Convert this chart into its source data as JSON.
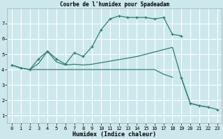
{
  "title": "Courbe de l'humidex pour Spadeadam",
  "xlabel": "Humidex (Indice chaleur)",
  "background_color": "#cce8ec",
  "line_color": "#2e7d6e",
  "grid_color": "#ffffff",
  "xlim": [
    -0.5,
    23.5
  ],
  "ylim": [
    0.5,
    8.0
  ],
  "xticks": [
    0,
    1,
    2,
    3,
    4,
    5,
    6,
    7,
    8,
    9,
    10,
    11,
    12,
    13,
    14,
    15,
    16,
    17,
    18,
    19,
    20,
    21,
    22,
    23
  ],
  "yticks": [
    1,
    2,
    3,
    4,
    5,
    6,
    7
  ],
  "series1_x": [
    0,
    1,
    2,
    3,
    4,
    5,
    6,
    7,
    8,
    9,
    10,
    11,
    12,
    13,
    14,
    15,
    16,
    17,
    18,
    19
  ],
  "series1_y": [
    4.3,
    4.1,
    4.0,
    4.7,
    5.2,
    4.7,
    4.35,
    5.1,
    4.85,
    5.5,
    6.6,
    7.3,
    7.5,
    7.4,
    7.4,
    7.4,
    7.3,
    7.4,
    6.3,
    6.2
  ],
  "series2_x": [
    0,
    1,
    2,
    3,
    4,
    5,
    6,
    7,
    8,
    9,
    10,
    11,
    12,
    13,
    14,
    15,
    16,
    17,
    18,
    19,
    20,
    21,
    22
  ],
  "series2_y": [
    4.3,
    4.1,
    4.0,
    4.4,
    5.2,
    4.5,
    4.3,
    4.35,
    4.3,
    4.35,
    4.45,
    4.55,
    4.65,
    4.75,
    4.85,
    5.0,
    5.15,
    5.3,
    5.45,
    3.45,
    1.8,
    1.65,
    1.55
  ],
  "series3_x": [
    0,
    1,
    2,
    3,
    4,
    5,
    6,
    7,
    8,
    9,
    10,
    11,
    12,
    13,
    14,
    15,
    16,
    17,
    18
  ],
  "series3_y": [
    4.3,
    4.1,
    4.0,
    4.0,
    4.0,
    4.0,
    4.0,
    4.0,
    4.0,
    4.0,
    4.0,
    4.0,
    4.0,
    4.0,
    4.0,
    4.0,
    4.0,
    3.7,
    3.5
  ],
  "series4_x": [
    19,
    20,
    21,
    22,
    23
  ],
  "series4_y": [
    3.45,
    1.8,
    1.65,
    1.55,
    1.4
  ]
}
